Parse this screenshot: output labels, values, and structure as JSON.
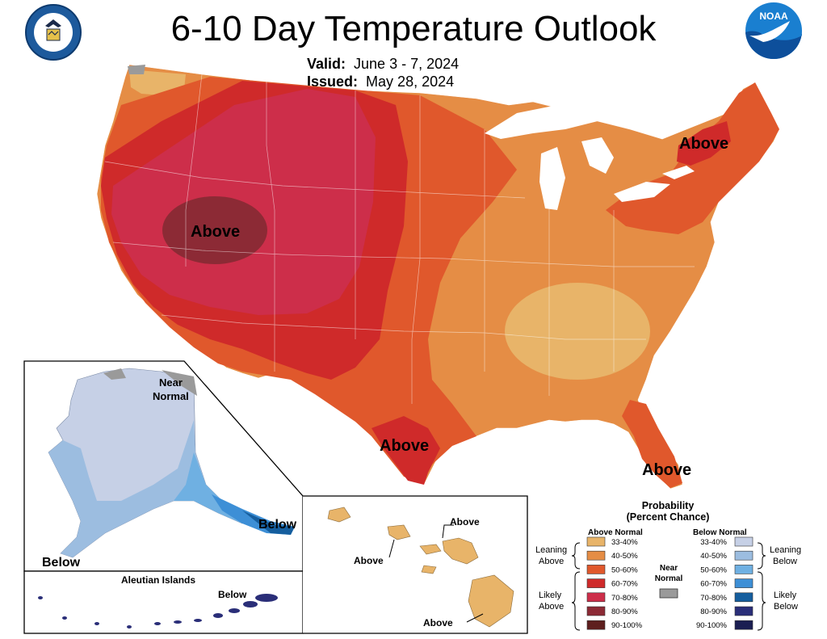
{
  "header": {
    "title": "6-10 Day Temperature Outlook",
    "valid_label": "Valid:",
    "valid_value": "June 3 - 7, 2024",
    "issued_label": "Issued:",
    "issued_value": "May 28, 2024",
    "left_seal": "department-of-commerce-seal",
    "right_logo": "noaa-logo"
  },
  "map": {
    "conus_labels": [
      "Above",
      "Above",
      "Above",
      "Above"
    ],
    "alaska_labels": [
      "Near Normal",
      "Below",
      "Below"
    ],
    "aleutian_title": "Aleutian Islands",
    "aleutian_label": "Below",
    "hawaii_labels": [
      "Above",
      "Above",
      "Above"
    ]
  },
  "legend": {
    "title_line1": "Probability",
    "title_line2": "(Percent Chance)",
    "above_header": "Above Normal",
    "below_header": "Below Normal",
    "near_normal_line1": "Near",
    "near_normal_line2": "Normal",
    "near_normal_color": "#9a9a9a",
    "leaning_above_line1": "Leaning",
    "leaning_above_line2": "Above",
    "likely_above_line1": "Likely",
    "likely_above_line2": "Above",
    "leaning_below_line1": "Leaning",
    "leaning_below_line2": "Below",
    "likely_below_line1": "Likely",
    "likely_below_line2": "Below",
    "above": [
      {
        "range": "33-40%",
        "color": "#e8b469"
      },
      {
        "range": "40-50%",
        "color": "#e58d45"
      },
      {
        "range": "50-60%",
        "color": "#e0582c"
      },
      {
        "range": "60-70%",
        "color": "#cf2a2a"
      },
      {
        "range": "70-80%",
        "color": "#cd2e4a"
      },
      {
        "range": "80-90%",
        "color": "#8c2a35"
      },
      {
        "range": "90-100%",
        "color": "#5e1f1e"
      }
    ],
    "below": [
      {
        "range": "33-40%",
        "color": "#c6d0e6"
      },
      {
        "range": "40-50%",
        "color": "#9cbde0"
      },
      {
        "range": "50-60%",
        "color": "#6fb0e2"
      },
      {
        "range": "60-70%",
        "color": "#3d8fd6"
      },
      {
        "range": "70-80%",
        "color": "#155e9e"
      },
      {
        "range": "80-90%",
        "color": "#2a2e78"
      },
      {
        "range": "90-100%",
        "color": "#1b1e52"
      }
    ]
  }
}
